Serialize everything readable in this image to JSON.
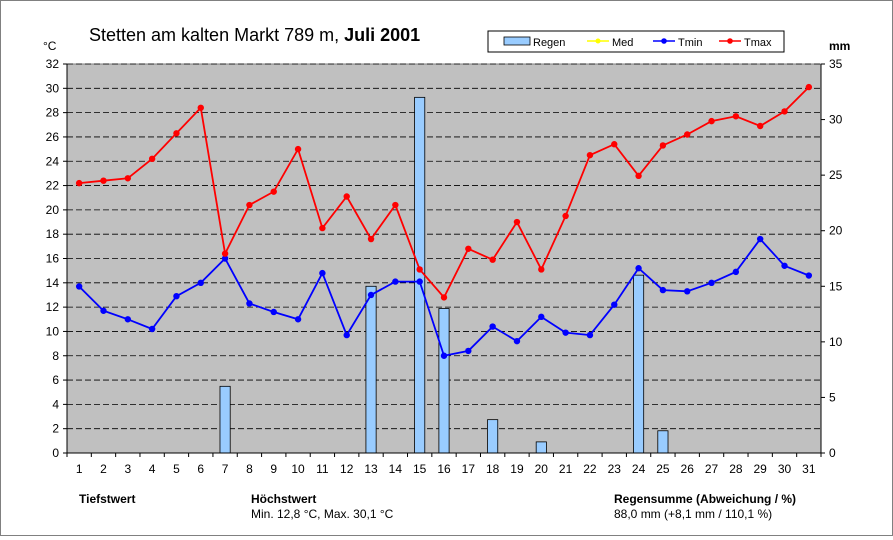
{
  "title_station": "Stetten am kalten Markt 789 m, ",
  "title_period": "Juli 2001",
  "unit_left": "°C",
  "unit_right": "mm",
  "legend": [
    {
      "label": "Regen",
      "kind": "bar"
    },
    {
      "label": "Med",
      "kind": "line",
      "color": "#ffff00"
    },
    {
      "label": "Tmin",
      "kind": "line",
      "color": "#0000ff"
    },
    {
      "label": "Tmax",
      "kind": "line",
      "color": "#ff0000"
    }
  ],
  "footer": {
    "tiefstwert_label": "Tiefstwert",
    "tiefstwert_text": "",
    "hoechstwert_label": "Höchstwert",
    "hoechstwert_text": "Min. 12,8 °C, Max. 30,1 °C",
    "regensumme_label": "Regensumme (Abweichung / %)",
    "regensumme_text": "88,0 mm (+8,1 mm / 110,1 %)"
  },
  "chart_data": {
    "type": "bar+line",
    "x": [
      1,
      2,
      3,
      4,
      5,
      6,
      7,
      8,
      9,
      10,
      11,
      12,
      13,
      14,
      15,
      16,
      17,
      18,
      19,
      20,
      21,
      22,
      23,
      24,
      25,
      26,
      27,
      28,
      29,
      30,
      31
    ],
    "y_left_range": [
      0,
      32
    ],
    "y_left_ticks": [
      0,
      2,
      4,
      6,
      8,
      10,
      12,
      14,
      16,
      18,
      20,
      22,
      24,
      26,
      28,
      30,
      32
    ],
    "y_right_range": [
      0,
      35
    ],
    "y_right_ticks": [
      0,
      5,
      10,
      15,
      20,
      25,
      30,
      35
    ],
    "grid": "horizontal dashed",
    "colors": {
      "plot_bg": "#c0c0c0",
      "bar_fill": "#99ccff",
      "bar_stroke": "#000000",
      "tmin": "#0000ff",
      "tmax": "#ff0000"
    },
    "series": [
      {
        "name": "Regen",
        "axis": "right",
        "kind": "bar",
        "values": [
          0,
          0,
          0,
          0,
          0,
          0,
          6.0,
          0,
          0,
          0,
          0,
          0,
          15.0,
          0,
          32.0,
          13.0,
          0,
          3.0,
          0,
          1.0,
          0,
          0,
          0,
          16.0,
          2.0,
          0,
          0,
          0,
          0,
          0,
          0
        ]
      },
      {
        "name": "Tmin",
        "axis": "left",
        "kind": "line",
        "values": [
          13.7,
          11.7,
          11.0,
          10.2,
          12.9,
          14.0,
          16.0,
          12.3,
          11.6,
          11.0,
          14.8,
          9.7,
          13.0,
          14.1,
          14.1,
          8.0,
          8.4,
          10.4,
          9.2,
          11.2,
          9.9,
          9.7,
          12.2,
          15.2,
          13.4,
          13.3,
          14.0,
          14.9,
          17.6,
          15.4,
          14.6
        ]
      },
      {
        "name": "Tmax",
        "axis": "left",
        "kind": "line",
        "values": [
          22.2,
          22.4,
          22.6,
          24.2,
          26.3,
          28.4,
          16.4,
          20.4,
          21.5,
          25.0,
          18.5,
          21.1,
          17.6,
          20.4,
          15.1,
          12.8,
          16.8,
          15.9,
          19.0,
          15.1,
          19.5,
          24.5,
          25.4,
          22.8,
          25.3,
          26.2,
          27.3,
          27.7,
          26.9,
          28.1,
          30.1
        ]
      }
    ]
  }
}
